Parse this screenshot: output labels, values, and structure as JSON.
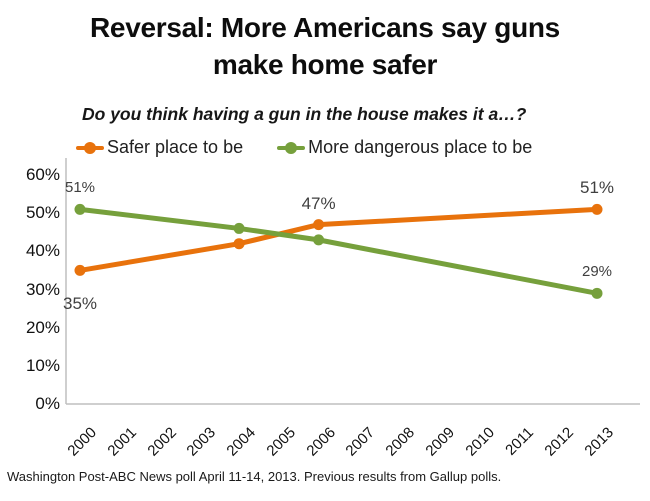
{
  "title": {
    "line1": "Reversal: More Americans say guns",
    "line2": "make home safer"
  },
  "subtitle": "Do you think having a gun in the house makes it a…?",
  "legend": [
    {
      "label": "Safer place to be",
      "color": "#E8720C"
    },
    {
      "label": "More dangerous place to be",
      "color": "#76A03C"
    }
  ],
  "footer": "Washington Post-ABC News poll April 11-14, 2013. Previous results from Gallup polls.",
  "colors": {
    "safer_series": "#E8720C",
    "dangerous_series": "#76A03C",
    "axis_line": "#BFBFBF",
    "data_label": "#3f3f3f"
  },
  "chart_data": {
    "type": "line",
    "title": "Reversal: More Americans say guns make home safer",
    "subtitle": "Do you think having a gun in the house makes it a…?",
    "categories": [
      "2000",
      "2001",
      "2002",
      "2003",
      "2004",
      "2005",
      "2006",
      "2007",
      "2008",
      "2009",
      "2010",
      "2011",
      "2012",
      "2013"
    ],
    "xlabel": "",
    "ylabel": "",
    "ylim": [
      0,
      60
    ],
    "grid": false,
    "legend_position": "top",
    "axis_color": "#BFBFBF",
    "yticks": [
      {
        "label": "60%",
        "value": 60
      },
      {
        "label": "50%",
        "value": 50
      },
      {
        "label": "40%",
        "value": 40
      },
      {
        "label": "30%",
        "value": 30
      },
      {
        "label": "20%",
        "value": 20
      },
      {
        "label": "10%",
        "value": 10
      },
      {
        "label": "0%",
        "value": 0
      }
    ],
    "series": [
      {
        "name": "Safer place to be",
        "color": "#E8720C",
        "points": [
          {
            "year": 2000,
            "value": 35
          },
          {
            "year": 2004,
            "value": 42
          },
          {
            "year": 2006,
            "value": 47
          },
          {
            "year": 2013,
            "value": 51
          }
        ],
        "labels": [
          {
            "year": 2000,
            "text": "35%",
            "position": "below"
          },
          {
            "year": 2006,
            "text": "47%",
            "position": "above"
          },
          {
            "year": 2013,
            "text": "51%",
            "position": "above"
          }
        ]
      },
      {
        "name": "More dangerous place to be",
        "color": "#76A03C",
        "points": [
          {
            "year": 2000,
            "value": 51
          },
          {
            "year": 2004,
            "value": 46
          },
          {
            "year": 2006,
            "value": 43
          },
          {
            "year": 2013,
            "value": 29
          }
        ],
        "labels": [
          {
            "year": 2000,
            "text": "51%",
            "position": "above"
          },
          {
            "year": 2013,
            "text": "29%",
            "position": "above"
          }
        ]
      }
    ]
  }
}
